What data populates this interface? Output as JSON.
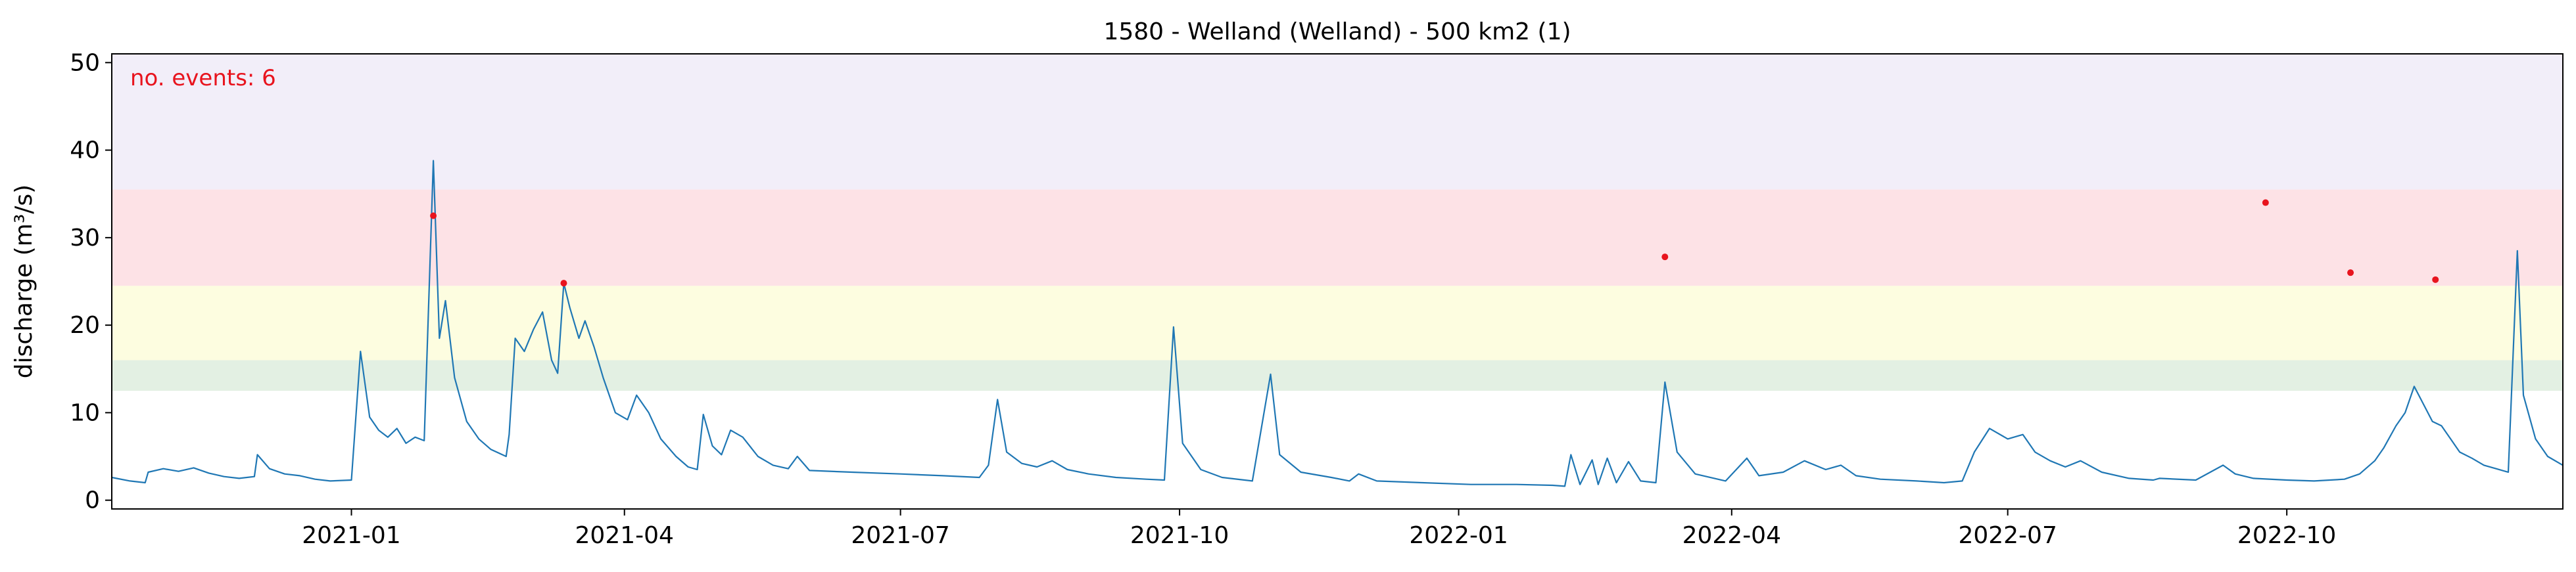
{
  "chart_data": {
    "type": "line",
    "title": "1580 - Welland (Welland) - 500 km2 (1)",
    "xlabel": "",
    "ylabel": "discharge (m³/s)",
    "xlim": [
      "2020-10-14",
      "2022-12-31"
    ],
    "ylim": [
      -1,
      51
    ],
    "x_ticks": [
      "2021-01",
      "2021-04",
      "2021-07",
      "2021-10",
      "2022-01",
      "2022-04",
      "2022-07",
      "2022-10"
    ],
    "y_ticks": [
      0,
      10,
      20,
      30,
      40,
      50
    ],
    "annotation": "no. events: 6",
    "grid": false,
    "threshold_bands": [
      {
        "from": 12.5,
        "to": 16,
        "color": "#e3f0e3"
      },
      {
        "from": 16,
        "to": 24.5,
        "color": "#fdfde0"
      },
      {
        "from": 24.5,
        "to": 35.5,
        "color": "#fde2e6"
      },
      {
        "from": 35.5,
        "to": 51,
        "color": "#f2eef9"
      }
    ],
    "series": [
      {
        "color": "#1f77b4",
        "points": [
          [
            "2020-10-14",
            2.6
          ],
          [
            "2020-10-20",
            2.2
          ],
          [
            "2020-10-25",
            2.0
          ],
          [
            "2020-10-26",
            3.2
          ],
          [
            "2020-10-31",
            3.6
          ],
          [
            "2020-11-05",
            3.3
          ],
          [
            "2020-11-10",
            3.7
          ],
          [
            "2020-11-15",
            3.1
          ],
          [
            "2020-11-20",
            2.7
          ],
          [
            "2020-11-25",
            2.5
          ],
          [
            "2020-11-30",
            2.7
          ],
          [
            "2020-12-01",
            5.2
          ],
          [
            "2020-12-05",
            3.6
          ],
          [
            "2020-12-10",
            3.0
          ],
          [
            "2020-12-15",
            2.8
          ],
          [
            "2020-12-20",
            2.4
          ],
          [
            "2020-12-25",
            2.2
          ],
          [
            "2021-01-01",
            2.3
          ],
          [
            "2021-01-04",
            17.0
          ],
          [
            "2021-01-07",
            9.5
          ],
          [
            "2021-01-10",
            8.0
          ],
          [
            "2021-01-13",
            7.2
          ],
          [
            "2021-01-16",
            8.2
          ],
          [
            "2021-01-19",
            6.5
          ],
          [
            "2021-01-22",
            7.2
          ],
          [
            "2021-01-25",
            6.8
          ],
          [
            "2021-01-28",
            38.8
          ],
          [
            "2021-01-30",
            18.5
          ],
          [
            "2021-02-01",
            22.8
          ],
          [
            "2021-02-04",
            14.0
          ],
          [
            "2021-02-08",
            9.0
          ],
          [
            "2021-02-12",
            7.0
          ],
          [
            "2021-02-16",
            5.8
          ],
          [
            "2021-02-21",
            5.0
          ],
          [
            "2021-02-22",
            7.5
          ],
          [
            "2021-02-24",
            18.5
          ],
          [
            "2021-02-27",
            17.0
          ],
          [
            "2021-03-02",
            19.5
          ],
          [
            "2021-03-05",
            21.5
          ],
          [
            "2021-03-08",
            16.0
          ],
          [
            "2021-03-10",
            14.5
          ],
          [
            "2021-03-12",
            24.8
          ],
          [
            "2021-03-14",
            22.0
          ],
          [
            "2021-03-17",
            18.5
          ],
          [
            "2021-03-19",
            20.5
          ],
          [
            "2021-03-22",
            17.5
          ],
          [
            "2021-03-25",
            14.0
          ],
          [
            "2021-03-29",
            10.0
          ],
          [
            "2021-04-02",
            9.2
          ],
          [
            "2021-04-05",
            12.0
          ],
          [
            "2021-04-09",
            10.0
          ],
          [
            "2021-04-13",
            7.0
          ],
          [
            "2021-04-18",
            5.0
          ],
          [
            "2021-04-22",
            3.8
          ],
          [
            "2021-04-25",
            3.5
          ],
          [
            "2021-04-27",
            9.8
          ],
          [
            "2021-04-30",
            6.2
          ],
          [
            "2021-05-03",
            5.2
          ],
          [
            "2021-05-06",
            8.0
          ],
          [
            "2021-05-10",
            7.2
          ],
          [
            "2021-05-15",
            5.0
          ],
          [
            "2021-05-20",
            4.0
          ],
          [
            "2021-05-25",
            3.6
          ],
          [
            "2021-05-28",
            5.0
          ],
          [
            "2021-06-01",
            3.4
          ],
          [
            "2021-06-15",
            3.2
          ],
          [
            "2021-07-01",
            3.0
          ],
          [
            "2021-07-15",
            2.8
          ],
          [
            "2021-07-27",
            2.6
          ],
          [
            "2021-07-30",
            4.0
          ],
          [
            "2021-08-02",
            11.5
          ],
          [
            "2021-08-05",
            5.5
          ],
          [
            "2021-08-10",
            4.2
          ],
          [
            "2021-08-15",
            3.8
          ],
          [
            "2021-08-20",
            4.5
          ],
          [
            "2021-08-25",
            3.5
          ],
          [
            "2021-09-01",
            3.0
          ],
          [
            "2021-09-10",
            2.6
          ],
          [
            "2021-09-20",
            2.4
          ],
          [
            "2021-09-26",
            2.3
          ],
          [
            "2021-09-29",
            19.8
          ],
          [
            "2021-10-02",
            6.5
          ],
          [
            "2021-10-08",
            3.5
          ],
          [
            "2021-10-15",
            2.6
          ],
          [
            "2021-10-25",
            2.2
          ],
          [
            "2021-10-31",
            14.4
          ],
          [
            "2021-11-03",
            5.2
          ],
          [
            "2021-11-10",
            3.2
          ],
          [
            "2021-11-20",
            2.6
          ],
          [
            "2021-11-26",
            2.2
          ],
          [
            "2021-11-29",
            3.0
          ],
          [
            "2021-12-05",
            2.2
          ],
          [
            "2021-12-20",
            2.0
          ],
          [
            "2022-01-05",
            1.8
          ],
          [
            "2022-01-20",
            1.8
          ],
          [
            "2022-02-01",
            1.7
          ],
          [
            "2022-02-05",
            1.6
          ],
          [
            "2022-02-07",
            5.2
          ],
          [
            "2022-02-10",
            1.8
          ],
          [
            "2022-02-14",
            4.6
          ],
          [
            "2022-02-16",
            1.8
          ],
          [
            "2022-02-19",
            4.8
          ],
          [
            "2022-02-22",
            2.0
          ],
          [
            "2022-02-26",
            4.4
          ],
          [
            "2022-03-02",
            2.2
          ],
          [
            "2022-03-07",
            2.0
          ],
          [
            "2022-03-10",
            13.5
          ],
          [
            "2022-03-14",
            5.5
          ],
          [
            "2022-03-20",
            3.0
          ],
          [
            "2022-03-30",
            2.2
          ],
          [
            "2022-04-06",
            4.8
          ],
          [
            "2022-04-10",
            2.8
          ],
          [
            "2022-04-18",
            3.2
          ],
          [
            "2022-04-25",
            4.5
          ],
          [
            "2022-05-02",
            3.5
          ],
          [
            "2022-05-07",
            4.0
          ],
          [
            "2022-05-12",
            2.8
          ],
          [
            "2022-05-20",
            2.4
          ],
          [
            "2022-06-01",
            2.2
          ],
          [
            "2022-06-10",
            2.0
          ],
          [
            "2022-06-16",
            2.2
          ],
          [
            "2022-06-20",
            5.5
          ],
          [
            "2022-06-25",
            8.2
          ],
          [
            "2022-07-01",
            7.0
          ],
          [
            "2022-07-06",
            7.5
          ],
          [
            "2022-07-10",
            5.5
          ],
          [
            "2022-07-15",
            4.5
          ],
          [
            "2022-07-20",
            3.8
          ],
          [
            "2022-07-25",
            4.5
          ],
          [
            "2022-08-01",
            3.2
          ],
          [
            "2022-08-10",
            2.5
          ],
          [
            "2022-08-18",
            2.3
          ],
          [
            "2022-08-20",
            2.5
          ],
          [
            "2022-09-01",
            2.3
          ],
          [
            "2022-09-10",
            4.0
          ],
          [
            "2022-09-14",
            3.0
          ],
          [
            "2022-09-20",
            2.5
          ],
          [
            "2022-10-01",
            2.3
          ],
          [
            "2022-10-10",
            2.2
          ],
          [
            "2022-10-20",
            2.4
          ],
          [
            "2022-10-25",
            3.0
          ],
          [
            "2022-10-30",
            4.5
          ],
          [
            "2022-11-02",
            6.0
          ],
          [
            "2022-11-06",
            8.5
          ],
          [
            "2022-11-09",
            10.0
          ],
          [
            "2022-11-12",
            13.0
          ],
          [
            "2022-11-15",
            11.0
          ],
          [
            "2022-11-18",
            9.0
          ],
          [
            "2022-11-21",
            8.5
          ],
          [
            "2022-11-24",
            7.0
          ],
          [
            "2022-11-27",
            5.5
          ],
          [
            "2022-12-01",
            4.8
          ],
          [
            "2022-12-05",
            4.0
          ],
          [
            "2022-12-09",
            3.6
          ],
          [
            "2022-12-13",
            3.2
          ],
          [
            "2022-12-16",
            28.5
          ],
          [
            "2022-12-18",
            12.0
          ],
          [
            "2022-12-22",
            7.0
          ],
          [
            "2022-12-26",
            5.0
          ],
          [
            "2022-12-31",
            4.0
          ]
        ]
      }
    ],
    "events": [
      {
        "date": "2021-01-28",
        "value": 32.5
      },
      {
        "date": "2021-03-12",
        "value": 24.8
      },
      {
        "date": "2022-03-10",
        "value": 27.8
      },
      {
        "date": "2022-09-24",
        "value": 34.0
      },
      {
        "date": "2022-10-22",
        "value": 26.0
      },
      {
        "date": "2022-11-19",
        "value": 25.2
      }
    ]
  }
}
